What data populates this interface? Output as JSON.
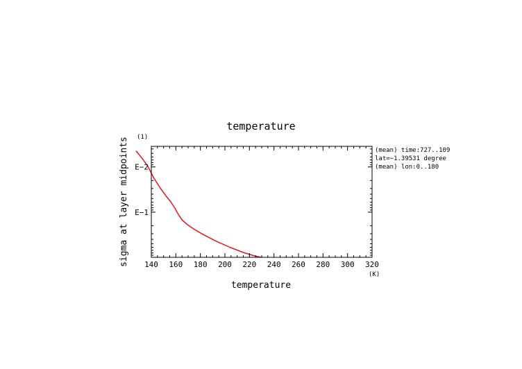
{
  "chart_data": {
    "type": "line",
    "title": "temperature",
    "xlabel": "temperature",
    "ylabel": "sigma at layer midpoints",
    "x_units": "(K)",
    "y_units": "(1)",
    "xlim": [
      140,
      320
    ],
    "x_ticks": [
      140,
      160,
      180,
      200,
      220,
      240,
      260,
      280,
      300,
      320
    ],
    "x_tick_labels": [
      "140",
      "160",
      "180",
      "200",
      "220",
      "240",
      "260",
      "280",
      "300",
      "320"
    ],
    "y_scale": "log",
    "ylim": [
      1,
      0.0035
    ],
    "y_ticks": [
      0.01,
      0.1
    ],
    "y_tick_labels": [
      "E−2",
      "E−1"
    ],
    "grid": false,
    "annotations": [
      "(mean) time:727..109",
      "lat=−1.39531 degree",
      "(mean) lon:0..180"
    ],
    "series": [
      {
        "color": "#e8141c",
        "x": [
          127.5,
          132,
          137,
          142,
          147,
          152,
          156,
          159,
          162,
          165,
          169,
          175,
          183,
          193,
          204,
          215,
          224,
          229,
          232,
          233.5,
          234
        ],
        "y": [
          0.0044,
          0.0062,
          0.0095,
          0.0175,
          0.0285,
          0.044,
          0.06,
          0.08,
          0.112,
          0.148,
          0.185,
          0.24,
          0.32,
          0.44,
          0.6,
          0.78,
          0.93,
          0.99,
          1.03,
          1.05,
          1.06
        ]
      }
    ]
  }
}
